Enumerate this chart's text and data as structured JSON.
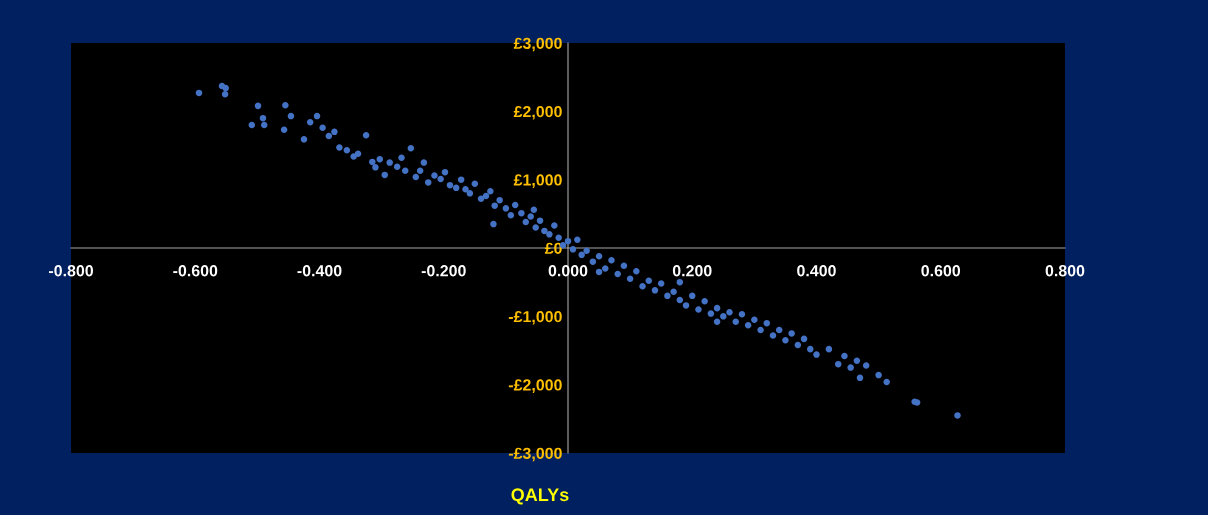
{
  "chart_data": {
    "type": "scatter",
    "xlabel": "QALYs",
    "xlim": [
      -0.8,
      0.8
    ],
    "xticks": [
      {
        "value": -0.8,
        "label": "-0.800"
      },
      {
        "value": -0.6,
        "label": "-0.600"
      },
      {
        "value": -0.4,
        "label": "-0.400"
      },
      {
        "value": -0.2,
        "label": "-0.200"
      },
      {
        "value": 0,
        "label": "0.000"
      },
      {
        "value": 0.2,
        "label": "0.200"
      },
      {
        "value": 0.4,
        "label": "0.400"
      },
      {
        "value": 0.6,
        "label": "0.600"
      },
      {
        "value": 0.8,
        "label": "0.800"
      }
    ],
    "ylim": [
      -3000,
      3000
    ],
    "yticks": [
      {
        "value": -3000,
        "label": "-£3,000"
      },
      {
        "value": -2000,
        "label": "-£2,000"
      },
      {
        "value": -1000,
        "label": "-£1,000"
      },
      {
        "value": 0,
        "label": "£0"
      },
      {
        "value": 1000,
        "label": "£1,000"
      },
      {
        "value": 2000,
        "label": "£2,000"
      },
      {
        "value": 3000,
        "label": "£3,000"
      }
    ],
    "grid": false,
    "legend": false,
    "marker": "circle",
    "series": [
      {
        "color": "#4472c4",
        "x": [
          -0.594,
          -0.557,
          -0.551,
          -0.552,
          -0.499,
          -0.509,
          -0.491,
          -0.489,
          -0.455,
          -0.457,
          -0.446,
          -0.425,
          -0.415,
          -0.404,
          -0.395,
          -0.385,
          -0.376,
          -0.368,
          -0.356,
          -0.345,
          -0.338,
          -0.325,
          -0.315,
          -0.31,
          -0.303,
          -0.295,
          -0.287,
          -0.275,
          -0.268,
          -0.262,
          -0.253,
          -0.245,
          -0.238,
          -0.232,
          -0.225,
          -0.215,
          -0.205,
          -0.198,
          -0.19,
          -0.18,
          -0.172,
          -0.165,
          -0.158,
          -0.15,
          -0.14,
          -0.132,
          -0.125,
          -0.118,
          -0.11,
          -0.1,
          -0.092,
          -0.085,
          -0.075,
          -0.068,
          -0.06,
          -0.052,
          -0.045,
          -0.038,
          -0.03,
          -0.022,
          -0.015,
          -0.008,
          0.0,
          0.008,
          0.015,
          0.022,
          0.03,
          0.04,
          0.05,
          0.06,
          0.07,
          0.08,
          0.09,
          0.1,
          0.11,
          0.12,
          0.13,
          0.14,
          0.15,
          0.16,
          0.17,
          0.18,
          0.19,
          0.2,
          0.21,
          0.22,
          0.23,
          0.24,
          0.25,
          0.26,
          0.27,
          0.28,
          0.29,
          0.3,
          0.31,
          0.32,
          0.33,
          0.34,
          0.35,
          0.36,
          0.37,
          0.38,
          0.39,
          0.4,
          0.42,
          0.435,
          0.445,
          0.455,
          0.465,
          0.47,
          0.48,
          0.5,
          0.513,
          0.558,
          0.562,
          0.627,
          -0.12,
          -0.055,
          0.05,
          0.18,
          0.24
        ],
        "values": [
          2270,
          2370,
          2340,
          2250,
          2080,
          1800,
          1900,
          1800,
          2090,
          1730,
          1930,
          1590,
          1840,
          1930,
          1760,
          1640,
          1700,
          1470,
          1430,
          1340,
          1380,
          1650,
          1260,
          1180,
          1300,
          1070,
          1250,
          1190,
          1320,
          1130,
          1460,
          1040,
          1130,
          1250,
          960,
          1060,
          1010,
          1110,
          920,
          880,
          1000,
          860,
          800,
          940,
          720,
          760,
          830,
          620,
          700,
          580,
          480,
          630,
          510,
          380,
          460,
          300,
          400,
          250,
          200,
          330,
          150,
          40,
          100,
          -20,
          120,
          -100,
          -40,
          -200,
          -120,
          -300,
          -180,
          -380,
          -260,
          -450,
          -340,
          -560,
          -480,
          -620,
          -520,
          -700,
          -640,
          -760,
          -840,
          -700,
          -900,
          -780,
          -960,
          -880,
          -1000,
          -940,
          -1080,
          -970,
          -1130,
          -1050,
          -1200,
          -1100,
          -1280,
          -1200,
          -1350,
          -1250,
          -1420,
          -1330,
          -1480,
          -1560,
          -1480,
          -1700,
          -1580,
          -1750,
          -1650,
          -1900,
          -1720,
          -1860,
          -1960,
          -2250,
          -2260,
          -2450,
          350,
          560,
          -350,
          -500,
          -1080
        ]
      }
    ]
  }
}
